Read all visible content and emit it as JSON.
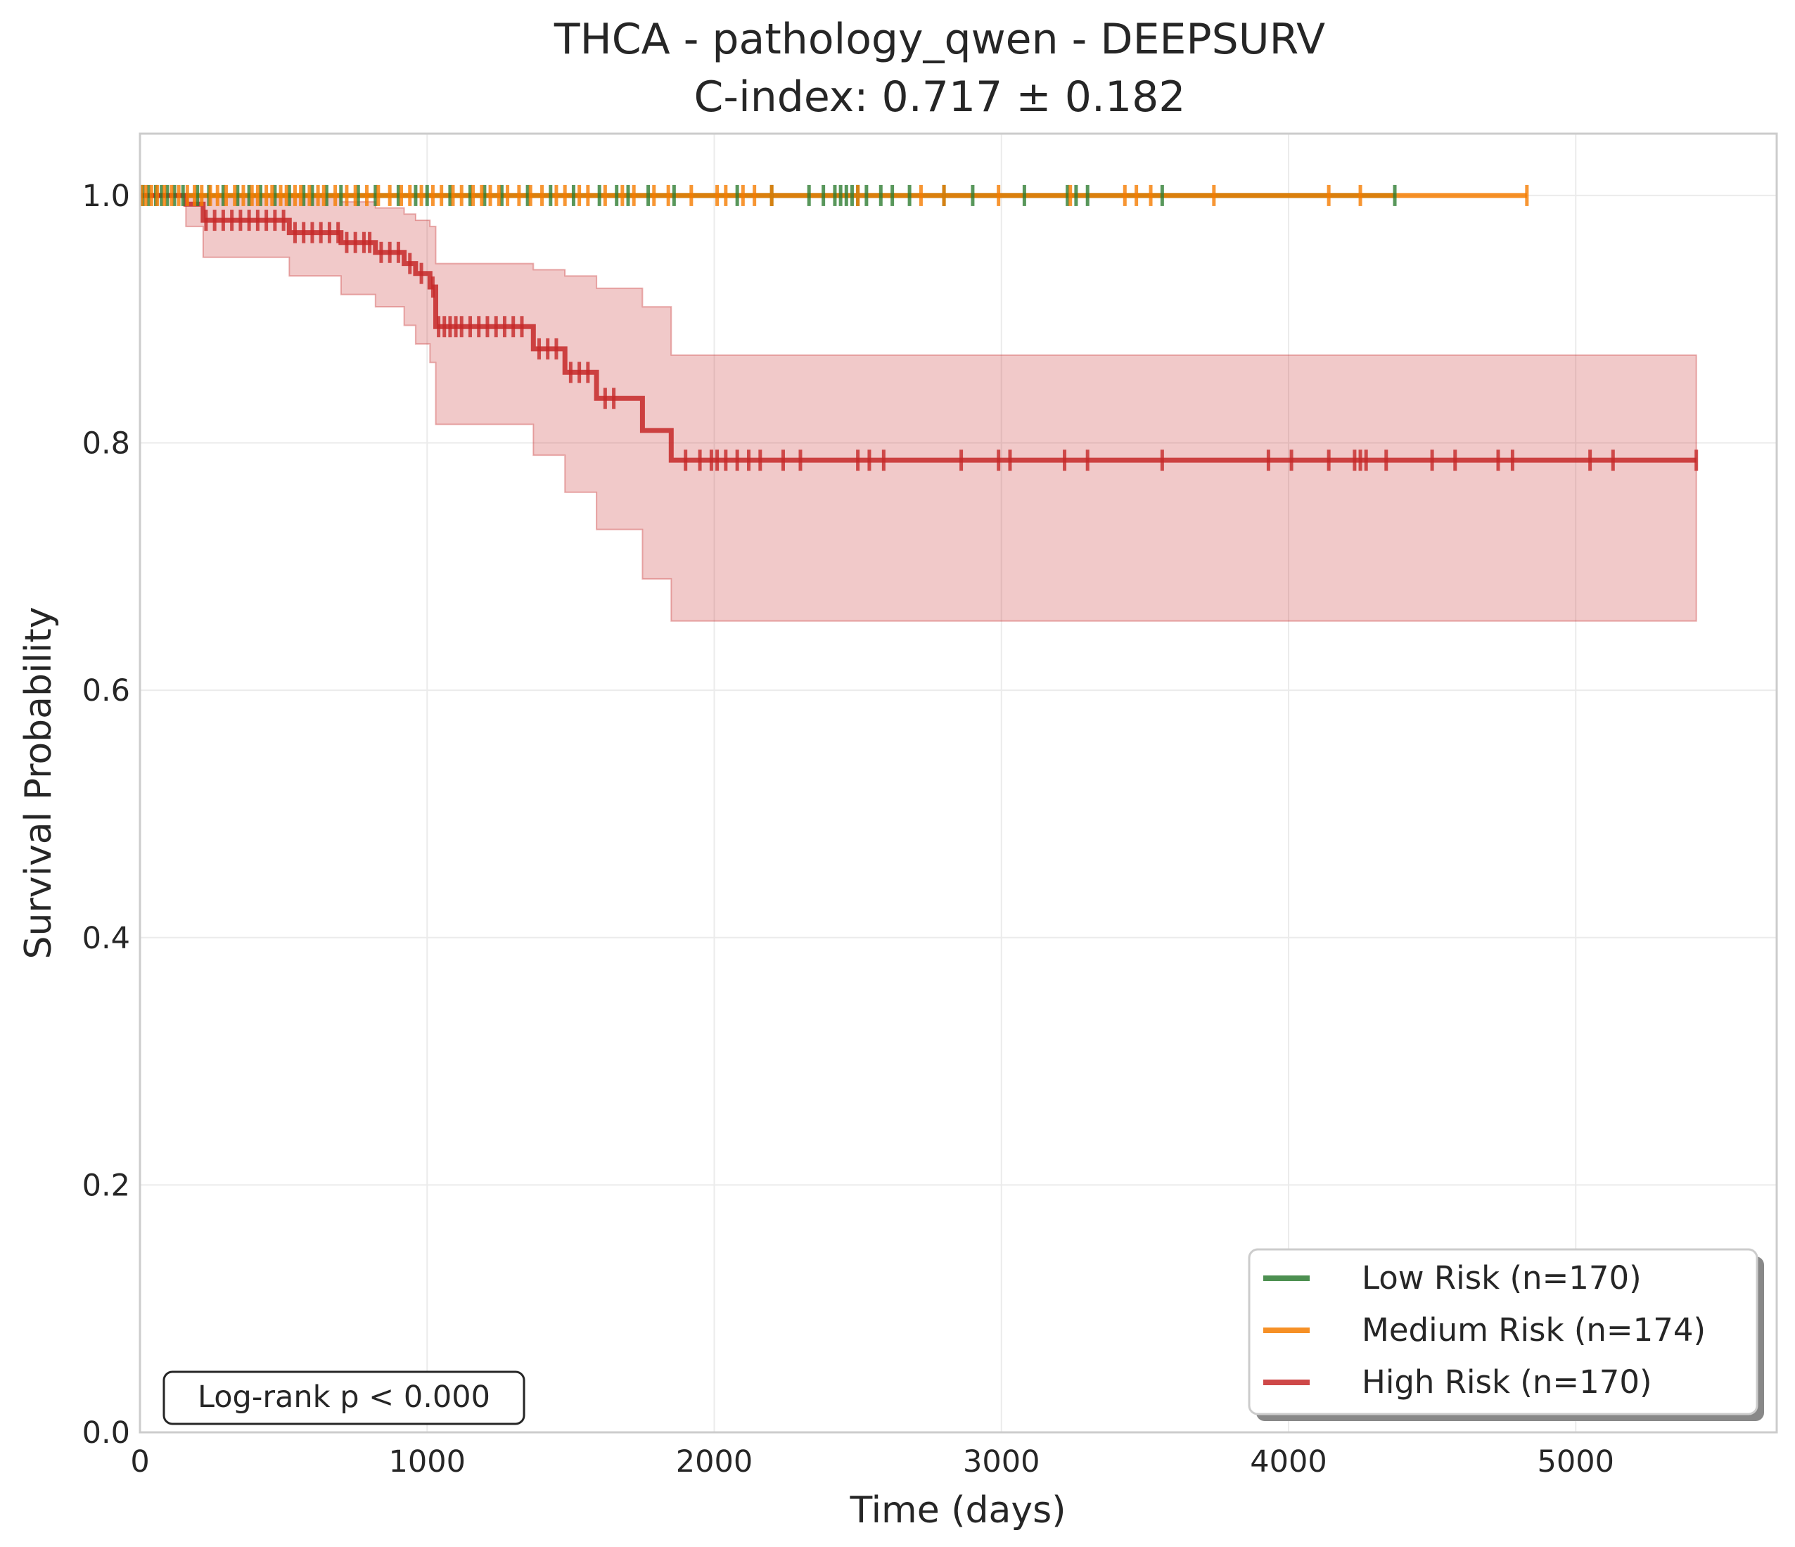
{
  "chart_data": {
    "type": "line",
    "subtype": "kaplan-meier",
    "title": "THCA - pathology_qwen - DEEPSURV",
    "subtitle": "C-index: 0.717 ± 0.182",
    "xlabel": "Time (days)",
    "ylabel": "Survival Probability",
    "xlim": [
      0,
      5700
    ],
    "ylim": [
      0,
      1.05
    ],
    "xticks": [
      0,
      1000,
      2000,
      3000,
      4000,
      5000
    ],
    "xtick_labels": [
      "0",
      "1000",
      "2000",
      "3000",
      "4000",
      "5000"
    ],
    "yticks": [
      0,
      0.2,
      0.4,
      0.6,
      0.8,
      1.0
    ],
    "ytick_labels": [
      "0.0",
      "0.2",
      "0.4",
      "0.6",
      "0.8",
      "1.0"
    ],
    "grid": true,
    "legend_position": "bottom-right",
    "annotation": "Log-rank p < 0.000",
    "series": [
      {
        "name": "Low Risk (n=170)",
        "color": "#2e7d32",
        "steps": [
          [
            0,
            1.0
          ],
          [
            4370,
            1.0
          ]
        ],
        "censor_times": [
          10,
          30,
          55,
          75,
          95,
          120,
          150,
          200,
          240,
          290,
          340,
          380,
          420,
          470,
          520,
          570,
          600,
          650,
          700,
          760,
          820,
          900,
          960,
          1000,
          1080,
          1150,
          1200,
          1260,
          1350,
          1430,
          1510,
          1600,
          1660,
          1700,
          1770,
          1860,
          2080,
          2200,
          2330,
          2380,
          2420,
          2440,
          2460,
          2480,
          2500,
          2530,
          2580,
          2620,
          2680,
          2800,
          2900,
          3080,
          3230,
          3260,
          3300,
          3560,
          4370
        ]
      },
      {
        "name": "Medium Risk (n=174)",
        "color": "#f57c00",
        "steps": [
          [
            0,
            1.0
          ],
          [
            4830,
            1.0
          ]
        ],
        "censor_times": [
          5,
          20,
          40,
          60,
          85,
          110,
          135,
          165,
          190,
          215,
          245,
          270,
          300,
          330,
          360,
          390,
          410,
          440,
          460,
          490,
          510,
          540,
          560,
          590,
          620,
          640,
          680,
          720,
          750,
          790,
          830,
          870,
          910,
          940,
          980,
          1020,
          1050,
          1090,
          1120,
          1160,
          1190,
          1220,
          1250,
          1280,
          1320,
          1360,
          1400,
          1450,
          1480,
          1530,
          1560,
          1620,
          1680,
          1720,
          1790,
          1840,
          1920,
          2010,
          2040,
          2100,
          2140,
          2200,
          2500,
          2720,
          2800,
          2990,
          3240,
          3430,
          3470,
          3520,
          3740,
          4140,
          4250,
          4830
        ]
      },
      {
        "name": "High Risk (n=170)",
        "color": "#c62828",
        "steps": [
          [
            0,
            1.0
          ],
          [
            160,
            1.0
          ],
          [
            160,
            0.993
          ],
          [
            220,
            0.993
          ],
          [
            220,
            0.98
          ],
          [
            520,
            0.98
          ],
          [
            520,
            0.97
          ],
          [
            700,
            0.97
          ],
          [
            700,
            0.962
          ],
          [
            820,
            0.962
          ],
          [
            820,
            0.954
          ],
          [
            920,
            0.954
          ],
          [
            920,
            0.945
          ],
          [
            960,
            0.945
          ],
          [
            960,
            0.937
          ],
          [
            1010,
            0.937
          ],
          [
            1010,
            0.926
          ],
          [
            1030,
            0.926
          ],
          [
            1030,
            0.894
          ],
          [
            1370,
            0.894
          ],
          [
            1370,
            0.876
          ],
          [
            1480,
            0.876
          ],
          [
            1480,
            0.857
          ],
          [
            1590,
            0.857
          ],
          [
            1590,
            0.836
          ],
          [
            1750,
            0.836
          ],
          [
            1750,
            0.81
          ],
          [
            1850,
            0.81
          ],
          [
            1850,
            0.786
          ],
          [
            5420,
            0.786
          ]
        ],
        "ci": [
          [
            0,
            1.0,
            1.0
          ],
          [
            160,
            0.975,
            1.0
          ],
          [
            220,
            0.95,
            1.0
          ],
          [
            520,
            0.935,
            1.0
          ],
          [
            700,
            0.92,
            0.995
          ],
          [
            820,
            0.91,
            0.99
          ],
          [
            920,
            0.895,
            0.985
          ],
          [
            960,
            0.88,
            0.98
          ],
          [
            1010,
            0.865,
            0.975
          ],
          [
            1030,
            0.815,
            0.945
          ],
          [
            1370,
            0.79,
            0.94
          ],
          [
            1480,
            0.76,
            0.935
          ],
          [
            1590,
            0.73,
            0.925
          ],
          [
            1750,
            0.69,
            0.91
          ],
          [
            1850,
            0.656,
            0.871
          ],
          [
            5420,
            0.656,
            0.871
          ]
        ],
        "censor_times": [
          230,
          260,
          290,
          320,
          350,
          380,
          410,
          440,
          470,
          500,
          540,
          570,
          600,
          630,
          660,
          690,
          720,
          750,
          780,
          800,
          840,
          870,
          900,
          940,
          980,
          1020,
          1040,
          1060,
          1080,
          1100,
          1120,
          1150,
          1180,
          1210,
          1240,
          1270,
          1300,
          1330,
          1390,
          1420,
          1450,
          1500,
          1530,
          1560,
          1620,
          1650,
          1900,
          1950,
          1990,
          2010,
          2040,
          2080,
          2120,
          2160,
          2240,
          2300,
          2500,
          2540,
          2590,
          2860,
          2990,
          3030,
          3220,
          3300,
          3560,
          3930,
          4010,
          4140,
          4230,
          4250,
          4270,
          4340,
          4500,
          4580,
          4730,
          4780,
          5050,
          5130,
          5420
        ]
      }
    ]
  }
}
